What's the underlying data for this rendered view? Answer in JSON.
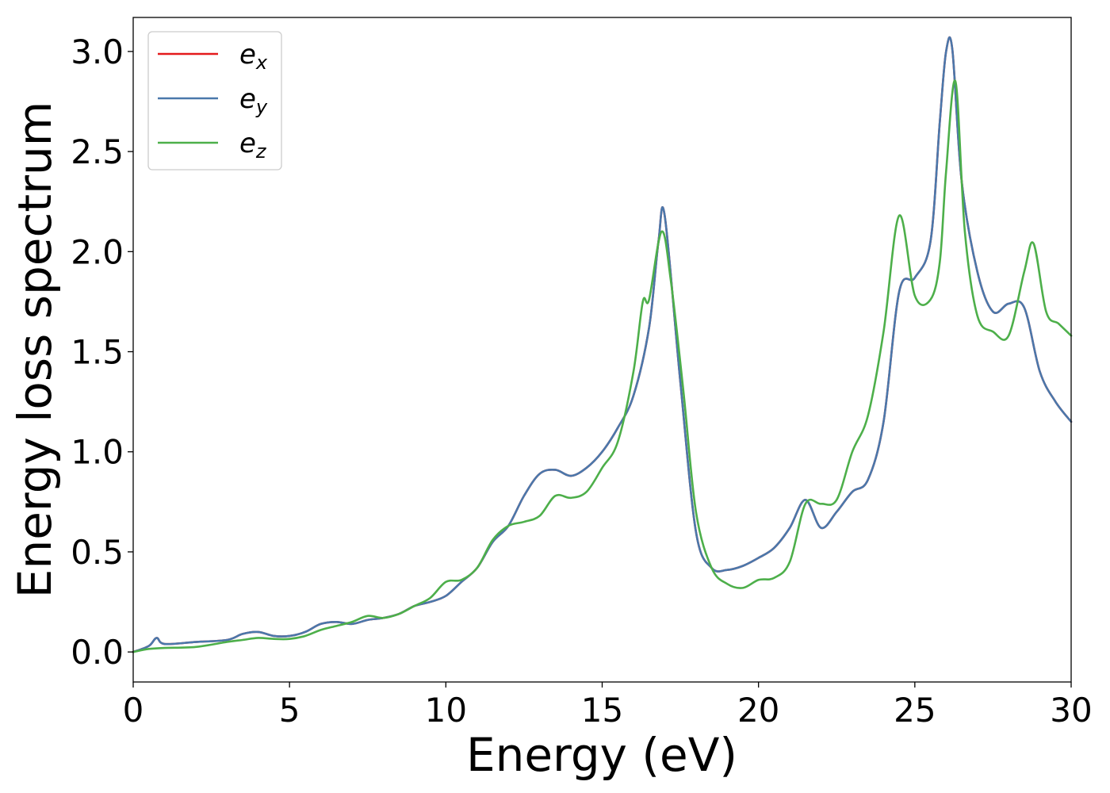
{
  "chart_data": {
    "type": "line",
    "xlabel": "Energy (eV)",
    "ylabel": "Energy loss spectrum",
    "xlim": [
      0,
      30
    ],
    "ylim": [
      -0.15,
      3.17
    ],
    "xticks": [
      0,
      5,
      10,
      15,
      20,
      25,
      30
    ],
    "xtick_labels": [
      "0",
      "5",
      "10",
      "15",
      "20",
      "25",
      "30"
    ],
    "yticks": [
      0.0,
      0.5,
      1.0,
      1.5,
      2.0,
      2.5,
      3.0
    ],
    "ytick_labels": [
      "0.0",
      "0.5",
      "1.0",
      "1.5",
      "2.0",
      "2.5",
      "3.0"
    ],
    "grid": false,
    "legend_position": "top-left",
    "series": [
      {
        "name": "e",
        "subscript": "x",
        "color": "#e41a1c",
        "x": [
          0,
          0.5,
          0.75,
          1.0,
          2.0,
          3.0,
          3.5,
          4.0,
          4.5,
          5.0,
          5.5,
          6.0,
          6.5,
          7.0,
          7.5,
          8.0,
          8.5,
          9.0,
          9.5,
          10.0,
          10.5,
          11.0,
          11.5,
          12.0,
          12.5,
          13.0,
          13.5,
          14.0,
          14.5,
          15.0,
          15.5,
          16.0,
          16.5,
          16.8,
          17.0,
          17.5,
          18.0,
          18.5,
          19.0,
          19.5,
          20.0,
          20.5,
          21.0,
          21.5,
          22.0,
          22.5,
          23.0,
          23.5,
          24.0,
          24.5,
          25.0,
          25.5,
          25.8,
          26.0,
          26.2,
          26.5,
          27.0,
          27.5,
          28.0,
          28.5,
          29.0,
          29.5,
          30.0
        ],
        "y": [
          0.0,
          0.03,
          0.07,
          0.04,
          0.05,
          0.06,
          0.09,
          0.1,
          0.08,
          0.08,
          0.1,
          0.14,
          0.15,
          0.14,
          0.16,
          0.17,
          0.19,
          0.23,
          0.25,
          0.28,
          0.35,
          0.42,
          0.55,
          0.63,
          0.78,
          0.89,
          0.91,
          0.88,
          0.92,
          1.0,
          1.12,
          1.28,
          1.62,
          2.05,
          2.18,
          1.35,
          0.6,
          0.42,
          0.41,
          0.43,
          0.47,
          0.52,
          0.62,
          0.76,
          0.62,
          0.7,
          0.8,
          0.86,
          1.15,
          1.8,
          1.87,
          2.05,
          2.65,
          3.0,
          3.01,
          2.35,
          1.9,
          1.7,
          1.74,
          1.72,
          1.4,
          1.25,
          1.15
        ]
      },
      {
        "name": "e",
        "subscript": "y",
        "color": "#4a78ab",
        "x": [
          0,
          0.5,
          0.75,
          1.0,
          2.0,
          3.0,
          3.5,
          4.0,
          4.5,
          5.0,
          5.5,
          6.0,
          6.5,
          7.0,
          7.5,
          8.0,
          8.5,
          9.0,
          9.5,
          10.0,
          10.5,
          11.0,
          11.5,
          12.0,
          12.5,
          13.0,
          13.5,
          14.0,
          14.5,
          15.0,
          15.5,
          16.0,
          16.5,
          16.8,
          17.0,
          17.5,
          18.0,
          18.5,
          19.0,
          19.5,
          20.0,
          20.5,
          21.0,
          21.5,
          22.0,
          22.5,
          23.0,
          23.5,
          24.0,
          24.5,
          25.0,
          25.5,
          25.8,
          26.0,
          26.2,
          26.5,
          27.0,
          27.5,
          28.0,
          28.5,
          29.0,
          29.5,
          30.0
        ],
        "y": [
          0.0,
          0.03,
          0.07,
          0.04,
          0.05,
          0.06,
          0.09,
          0.1,
          0.08,
          0.08,
          0.1,
          0.14,
          0.15,
          0.14,
          0.16,
          0.17,
          0.19,
          0.23,
          0.25,
          0.28,
          0.35,
          0.42,
          0.55,
          0.63,
          0.78,
          0.89,
          0.91,
          0.88,
          0.92,
          1.0,
          1.12,
          1.28,
          1.62,
          2.05,
          2.18,
          1.35,
          0.6,
          0.42,
          0.41,
          0.43,
          0.47,
          0.52,
          0.62,
          0.76,
          0.62,
          0.7,
          0.8,
          0.86,
          1.15,
          1.8,
          1.87,
          2.05,
          2.65,
          3.0,
          3.01,
          2.35,
          1.9,
          1.7,
          1.74,
          1.72,
          1.4,
          1.25,
          1.15
        ]
      },
      {
        "name": "e",
        "subscript": "z",
        "color": "#4daf4a",
        "x": [
          0,
          0.5,
          1.0,
          2.0,
          3.0,
          3.5,
          4.0,
          4.5,
          5.0,
          5.5,
          6.0,
          6.5,
          7.0,
          7.5,
          8.0,
          8.5,
          9.0,
          9.5,
          10.0,
          10.5,
          11.0,
          11.5,
          12.0,
          12.5,
          13.0,
          13.5,
          14.0,
          14.5,
          15.0,
          15.5,
          16.0,
          16.3,
          16.5,
          16.9,
          17.2,
          17.6,
          18.0,
          18.5,
          19.0,
          19.5,
          20.0,
          20.5,
          21.0,
          21.5,
          22.0,
          22.5,
          23.0,
          23.5,
          24.0,
          24.5,
          25.0,
          25.5,
          25.8,
          26.0,
          26.3,
          26.6,
          27.0,
          27.5,
          28.0,
          28.5,
          28.8,
          29.2,
          29.6,
          30.0
        ],
        "y": [
          0.0,
          0.015,
          0.02,
          0.025,
          0.05,
          0.06,
          0.07,
          0.065,
          0.065,
          0.08,
          0.11,
          0.13,
          0.15,
          0.18,
          0.17,
          0.19,
          0.23,
          0.27,
          0.35,
          0.36,
          0.42,
          0.56,
          0.63,
          0.65,
          0.68,
          0.78,
          0.77,
          0.8,
          0.92,
          1.05,
          1.4,
          1.75,
          1.76,
          2.1,
          1.85,
          1.3,
          0.7,
          0.42,
          0.34,
          0.32,
          0.36,
          0.37,
          0.45,
          0.74,
          0.74,
          0.76,
          1.0,
          1.18,
          1.6,
          2.18,
          1.78,
          1.76,
          1.95,
          2.4,
          2.85,
          2.1,
          1.68,
          1.6,
          1.58,
          1.9,
          2.04,
          1.7,
          1.64,
          1.58
        ]
      }
    ]
  }
}
